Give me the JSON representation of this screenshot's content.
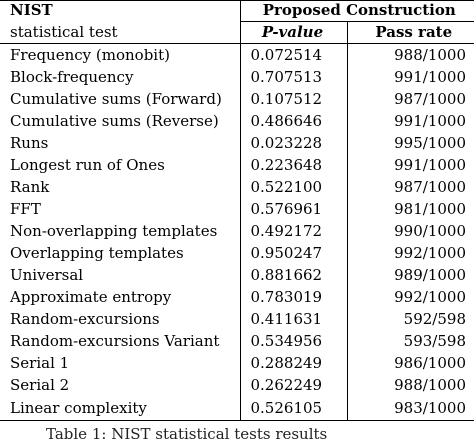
{
  "table": {
    "header_test_line1": "NIST",
    "header_test_line2": "statistical test",
    "header_group": "Proposed Construction",
    "header_pvalue": "P-value",
    "header_passrate": "Pass rate",
    "rows": [
      {
        "test": "Frequency (monobit)",
        "pvalue": "0.072514",
        "passrate": "988/1000"
      },
      {
        "test": "Block-frequency",
        "pvalue": "0.707513",
        "passrate": "991/1000"
      },
      {
        "test": "Cumulative sums (Forward)",
        "pvalue": "0.107512",
        "passrate": "987/1000"
      },
      {
        "test": "Cumulative sums (Reverse)",
        "pvalue": "0.486646",
        "passrate": "991/1000"
      },
      {
        "test": "Runs",
        "pvalue": "0.023228",
        "passrate": "995/1000"
      },
      {
        "test": "Longest run of Ones",
        "pvalue": "0.223648",
        "passrate": "991/1000"
      },
      {
        "test": "Rank",
        "pvalue": "0.522100",
        "passrate": "987/1000"
      },
      {
        "test": "FFT",
        "pvalue": "0.576961",
        "passrate": "981/1000"
      },
      {
        "test": "Non-overlapping templates",
        "pvalue": "0.492172",
        "passrate": "990/1000"
      },
      {
        "test": "Overlapping templates",
        "pvalue": "0.950247",
        "passrate": "992/1000"
      },
      {
        "test": "Universal",
        "pvalue": "0.881662",
        "passrate": "989/1000"
      },
      {
        "test": "Approximate entropy",
        "pvalue": "0.783019",
        "passrate": "992/1000"
      },
      {
        "test": "Random-excursions",
        "pvalue": "0.411631",
        "passrate": "592/598"
      },
      {
        "test": "Random-excursions Variant",
        "pvalue": "0.534956",
        "passrate": "593/598"
      },
      {
        "test": "Serial 1",
        "pvalue": "0.288249",
        "passrate": "986/1000"
      },
      {
        "test": "Serial 2",
        "pvalue": "0.262249",
        "passrate": "988/1000"
      },
      {
        "test": "Linear complexity",
        "pvalue": "0.526105",
        "passrate": "983/1000"
      }
    ]
  },
  "caption": "Table 1: NIST statistical tests results"
}
